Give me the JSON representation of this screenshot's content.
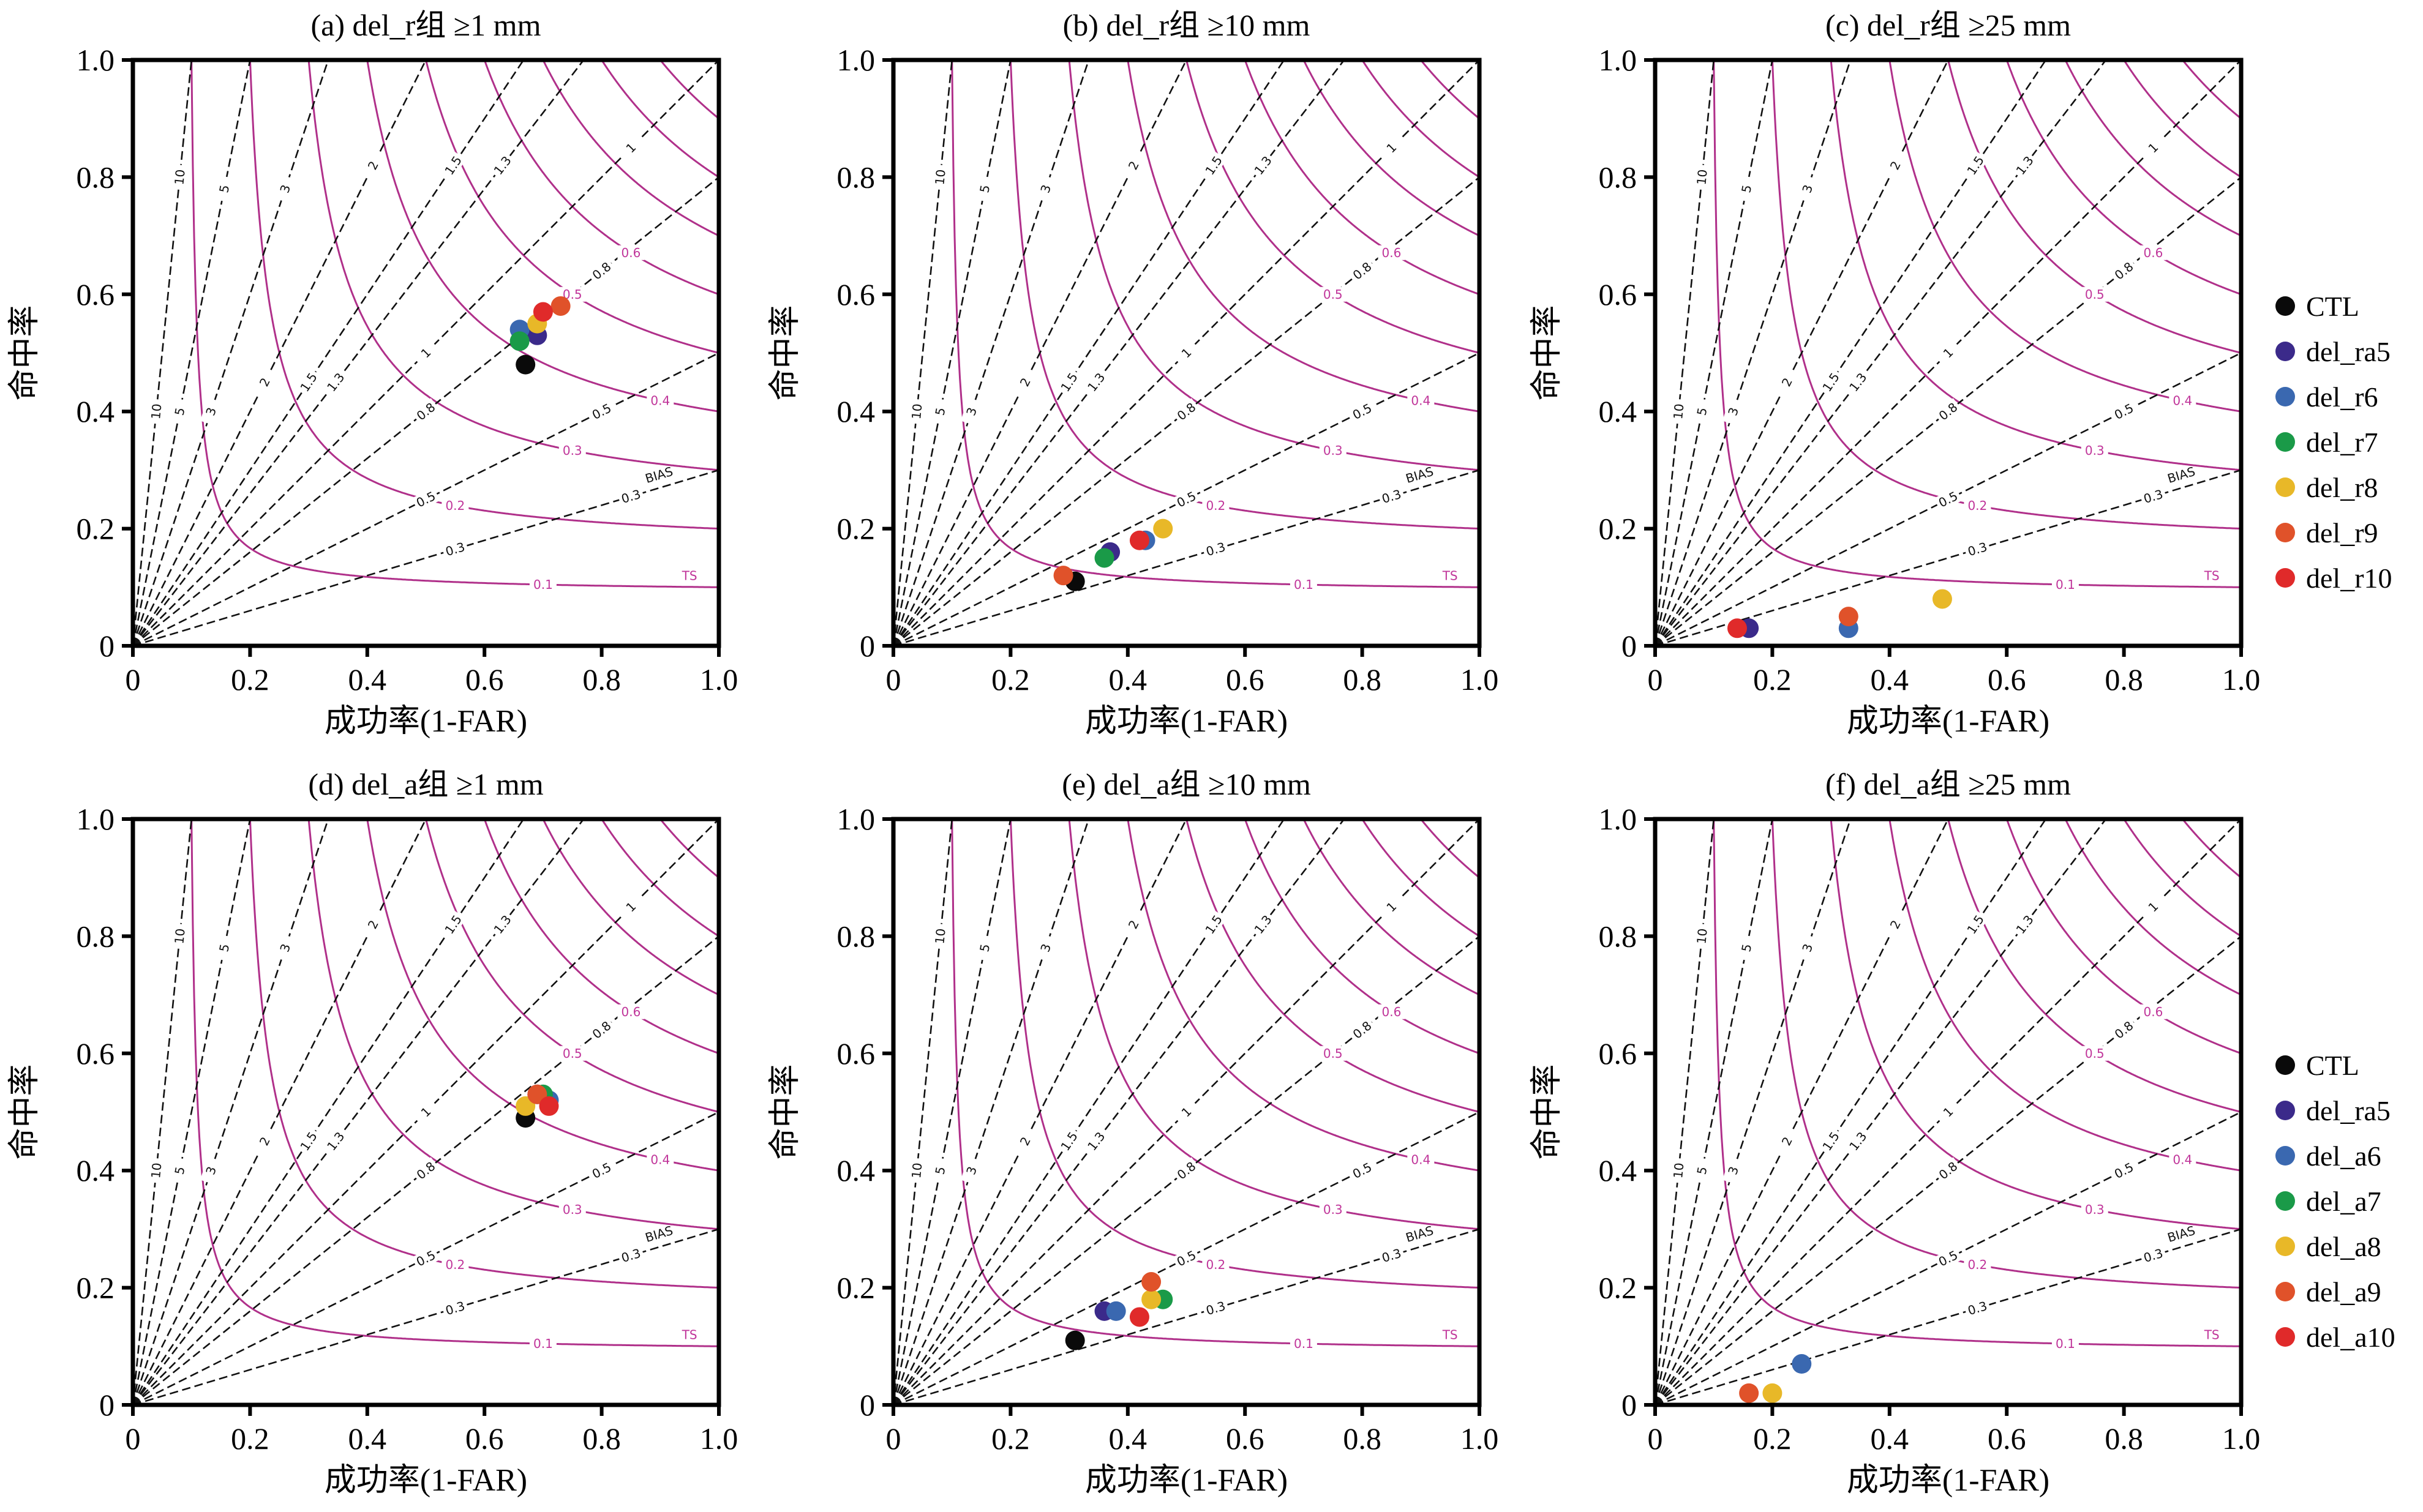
{
  "chart_data": {
    "type": "scatter",
    "kind": "performance-diagram",
    "xlabel": "成功率(1-FAR)",
    "ylabel": "命中率",
    "xlim": [
      0,
      1.0
    ],
    "ylim": [
      0,
      1.0
    ],
    "xticks": [
      "0",
      "0.2",
      "0.4",
      "0.6",
      "0.8",
      "1.0"
    ],
    "yticks": [
      "0",
      "0.2",
      "0.4",
      "0.6",
      "0.8",
      "1.0"
    ],
    "bias_levels": [
      0.3,
      0.5,
      0.8,
      1,
      1.3,
      1.5,
      2,
      3,
      5,
      10
    ],
    "bias_label_text": [
      "0.3",
      "0.5",
      "0.8",
      "1",
      "1.3",
      "1.5",
      "2",
      "3",
      "5",
      "10"
    ],
    "ts_levels": [
      0.1,
      0.2,
      0.3,
      0.4,
      0.5,
      0.6,
      0.7,
      0.8,
      0.9
    ],
    "ts_label_text": [
      "0.1",
      "0.2",
      "0.3",
      "0.4",
      "0.5",
      "0.6"
    ],
    "bias_axis_name": "BIAS",
    "ts_axis_name": "TS",
    "legends": [
      {
        "group": "del_r",
        "placement": "right of top row",
        "entries": [
          {
            "name": "CTL",
            "color": "#0a0a0a"
          },
          {
            "name": "del_ra5",
            "color": "#3b2a8a"
          },
          {
            "name": "del_r6",
            "color": "#3a68b0"
          },
          {
            "name": "del_r7",
            "color": "#1a9a48"
          },
          {
            "name": "del_r8",
            "color": "#e8b828"
          },
          {
            "name": "del_r9",
            "color": "#e0522a"
          },
          {
            "name": "del_r10",
            "color": "#e02a2a"
          }
        ]
      },
      {
        "group": "del_a",
        "placement": "right of bottom row",
        "entries": [
          {
            "name": "CTL",
            "color": "#0a0a0a"
          },
          {
            "name": "del_ra5",
            "color": "#3b2a8a"
          },
          {
            "name": "del_a6",
            "color": "#3a68b0"
          },
          {
            "name": "del_a7",
            "color": "#1a9a48"
          },
          {
            "name": "del_a8",
            "color": "#e8b828"
          },
          {
            "name": "del_a9",
            "color": "#e0522a"
          },
          {
            "name": "del_a10",
            "color": "#e02a2a"
          }
        ]
      }
    ],
    "panels": [
      {
        "id": "a",
        "title": "(a) del_r组 ≥1 mm",
        "legend": 0,
        "points": [
          {
            "series": "CTL",
            "x": 0.67,
            "y": 0.48
          },
          {
            "series": "del_ra5",
            "x": 0.69,
            "y": 0.53
          },
          {
            "series": "del_r6",
            "x": 0.66,
            "y": 0.54
          },
          {
            "series": "del_r7",
            "x": 0.66,
            "y": 0.52
          },
          {
            "series": "del_r8",
            "x": 0.69,
            "y": 0.55
          },
          {
            "series": "del_r9",
            "x": 0.73,
            "y": 0.58
          },
          {
            "series": "del_r10",
            "x": 0.7,
            "y": 0.57
          }
        ]
      },
      {
        "id": "b",
        "title": "(b) del_r组 ≥10 mm",
        "legend": 0,
        "points": [
          {
            "series": "CTL",
            "x": 0.31,
            "y": 0.11
          },
          {
            "series": "del_ra5",
            "x": 0.37,
            "y": 0.16
          },
          {
            "series": "del_r6",
            "x": 0.43,
            "y": 0.18
          },
          {
            "series": "del_r7",
            "x": 0.36,
            "y": 0.15
          },
          {
            "series": "del_r8",
            "x": 0.46,
            "y": 0.2
          },
          {
            "series": "del_r9",
            "x": 0.29,
            "y": 0.12
          },
          {
            "series": "del_r10",
            "x": 0.42,
            "y": 0.18
          }
        ]
      },
      {
        "id": "c",
        "title": "(c) del_r组 ≥25 mm",
        "legend": 0,
        "points": [
          {
            "series": "del_ra5",
            "x": 0.16,
            "y": 0.03
          },
          {
            "series": "del_r6",
            "x": 0.33,
            "y": 0.03
          },
          {
            "series": "del_r8",
            "x": 0.49,
            "y": 0.08
          },
          {
            "series": "del_r9",
            "x": 0.33,
            "y": 0.05
          },
          {
            "series": "del_r10",
            "x": 0.14,
            "y": 0.03
          }
        ]
      },
      {
        "id": "d",
        "title": "(d) del_a组 ≥1 mm",
        "legend": 1,
        "points": [
          {
            "series": "CTL",
            "x": 0.67,
            "y": 0.49
          },
          {
            "series": "del_ra5",
            "x": 0.69,
            "y": 0.53
          },
          {
            "series": "del_a6",
            "x": 0.71,
            "y": 0.52
          },
          {
            "series": "del_a7",
            "x": 0.7,
            "y": 0.53
          },
          {
            "series": "del_a8",
            "x": 0.67,
            "y": 0.51
          },
          {
            "series": "del_a9",
            "x": 0.69,
            "y": 0.53
          },
          {
            "series": "del_a10",
            "x": 0.71,
            "y": 0.51
          }
        ]
      },
      {
        "id": "e",
        "title": "(e) del_a组 ≥10 mm",
        "legend": 1,
        "points": [
          {
            "series": "CTL",
            "x": 0.31,
            "y": 0.11
          },
          {
            "series": "del_ra5",
            "x": 0.36,
            "y": 0.16
          },
          {
            "series": "del_a6",
            "x": 0.38,
            "y": 0.16
          },
          {
            "series": "del_a7",
            "x": 0.46,
            "y": 0.18
          },
          {
            "series": "del_a8",
            "x": 0.44,
            "y": 0.18
          },
          {
            "series": "del_a9",
            "x": 0.44,
            "y": 0.21
          },
          {
            "series": "del_a10",
            "x": 0.42,
            "y": 0.15
          }
        ]
      },
      {
        "id": "f",
        "title": "(f) del_a组 ≥25 mm",
        "legend": 1,
        "points": [
          {
            "series": "del_a6",
            "x": 0.25,
            "y": 0.07
          },
          {
            "series": "del_a8",
            "x": 0.2,
            "y": 0.02
          },
          {
            "series": "del_a9",
            "x": 0.16,
            "y": 0.02
          }
        ]
      }
    ]
  }
}
